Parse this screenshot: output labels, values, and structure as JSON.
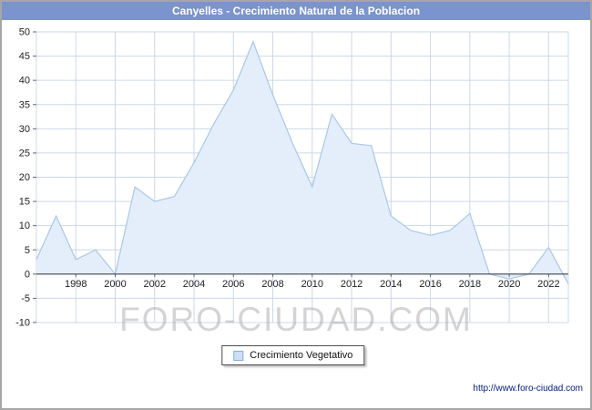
{
  "window": {
    "title": "Canyelles - Crecimiento Natural de la Poblacion"
  },
  "watermark": "FORO-CIUDAD.COM",
  "legend": {
    "label": "Crecimiento Vegetativo"
  },
  "footer": {
    "url_text": "http://www.foro-ciudad.com"
  },
  "colors": {
    "title_bar_bg": "#7b93ce",
    "title_text": "#ffffff",
    "area_fill": "#e4eefa",
    "line": "#a9c7e7",
    "grid": "#ccd8e6",
    "zero_axis": "#44445a",
    "axis_text": "#222222",
    "tick": "#666666",
    "legend_swatch_fill": "#ccdff5",
    "legend_swatch_border": "#89aed8",
    "watermark_text": "rgba(176,176,176,0.55)",
    "footer_text": "#001a80"
  },
  "chart_data": {
    "type": "area",
    "title": "Canyelles - Crecimiento Natural de la Poblacion",
    "series_name": "Crecimiento Vegetativo",
    "x": [
      1996,
      1997,
      1998,
      1999,
      2000,
      2001,
      2002,
      2003,
      2004,
      2005,
      2006,
      2007,
      2008,
      2009,
      2010,
      2011,
      2012,
      2013,
      2014,
      2015,
      2016,
      2017,
      2018,
      2019,
      2020,
      2021,
      2022,
      2023
    ],
    "values": [
      3,
      12,
      3,
      5,
      0,
      18,
      15,
      16,
      23,
      31,
      38,
      48,
      37,
      27,
      18,
      33,
      27,
      26.5,
      12,
      9,
      8,
      9,
      12.5,
      0,
      -1,
      0,
      5.5,
      -2
    ],
    "ylim": [
      -10,
      50
    ],
    "ytick_step": 5,
    "xticks": [
      1998,
      2000,
      2002,
      2004,
      2006,
      2008,
      2010,
      2012,
      2014,
      2016,
      2018,
      2020,
      2022
    ],
    "xlabel": "",
    "ylabel": "",
    "grid": true,
    "legend_position": "bottom-center"
  }
}
